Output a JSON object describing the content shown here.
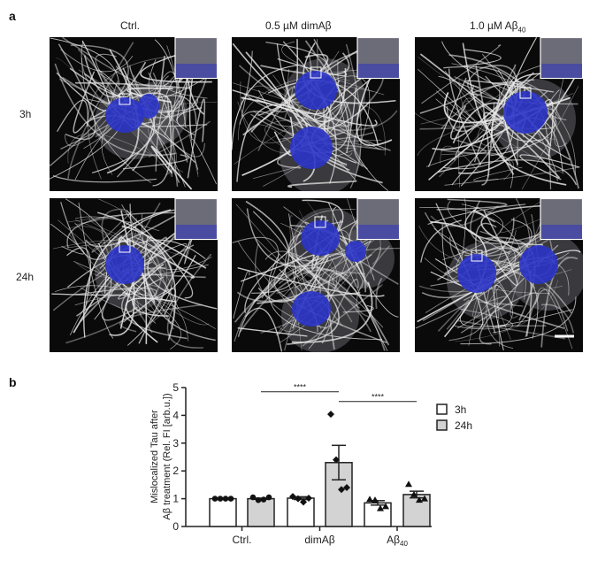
{
  "panel_a": {
    "letter": "a",
    "columns": [
      "Ctrl.",
      "0.5 µM dimAβ",
      "1.0 µM Aβ"
    ],
    "col3_subscript": "40",
    "rows": [
      "3h",
      "24h"
    ],
    "nucleus_color": "#2b34c8",
    "scale_bar": true
  },
  "panel_b": {
    "letter": "b"
  },
  "chart_data": {
    "type": "bar",
    "ylabel_line1": "Mislocalized Tau after",
    "ylabel_line2": "Aβ treatment (Rel. FI [arb.u.])",
    "ylim": [
      0,
      5
    ],
    "yticks": [
      "0",
      "1",
      "2",
      "3",
      "4",
      "5"
    ],
    "categories": [
      "Ctrl.",
      "dimAβ",
      "Aβ"
    ],
    "category3_subscript": "40",
    "legend_position": "right",
    "series": [
      {
        "name": "3h",
        "color": "#ffffff",
        "values": [
          1.0,
          1.02,
          0.85
        ],
        "sem": [
          0.0,
          0.05,
          0.08
        ],
        "points": [
          [
            1.0,
            1.0,
            1.0,
            1.0
          ],
          [
            1.08,
            1.0,
            0.88,
            1.02
          ],
          [
            0.98,
            0.95,
            0.65,
            0.72
          ]
        ]
      },
      {
        "name": "24h",
        "color": "#d3d3d3",
        "values": [
          1.0,
          2.3,
          1.15
        ],
        "sem": [
          0.02,
          0.62,
          0.12
        ],
        "points": [
          [
            1.05,
            0.95,
            0.97,
            1.05
          ],
          [
            4.04,
            2.4,
            1.33,
            1.4
          ],
          [
            1.52,
            1.15,
            0.95,
            1.0
          ]
        ]
      }
    ],
    "markers": [
      "circle",
      "diamond",
      "triangle"
    ],
    "significance": [
      {
        "from": "Ctrl. 24h",
        "to": "dimAβ 24h",
        "label": "****",
        "y": 4.85
      },
      {
        "from": "dimAβ 24h",
        "to": "Aβ40 24h",
        "label": "****",
        "y": 4.5
      }
    ]
  }
}
